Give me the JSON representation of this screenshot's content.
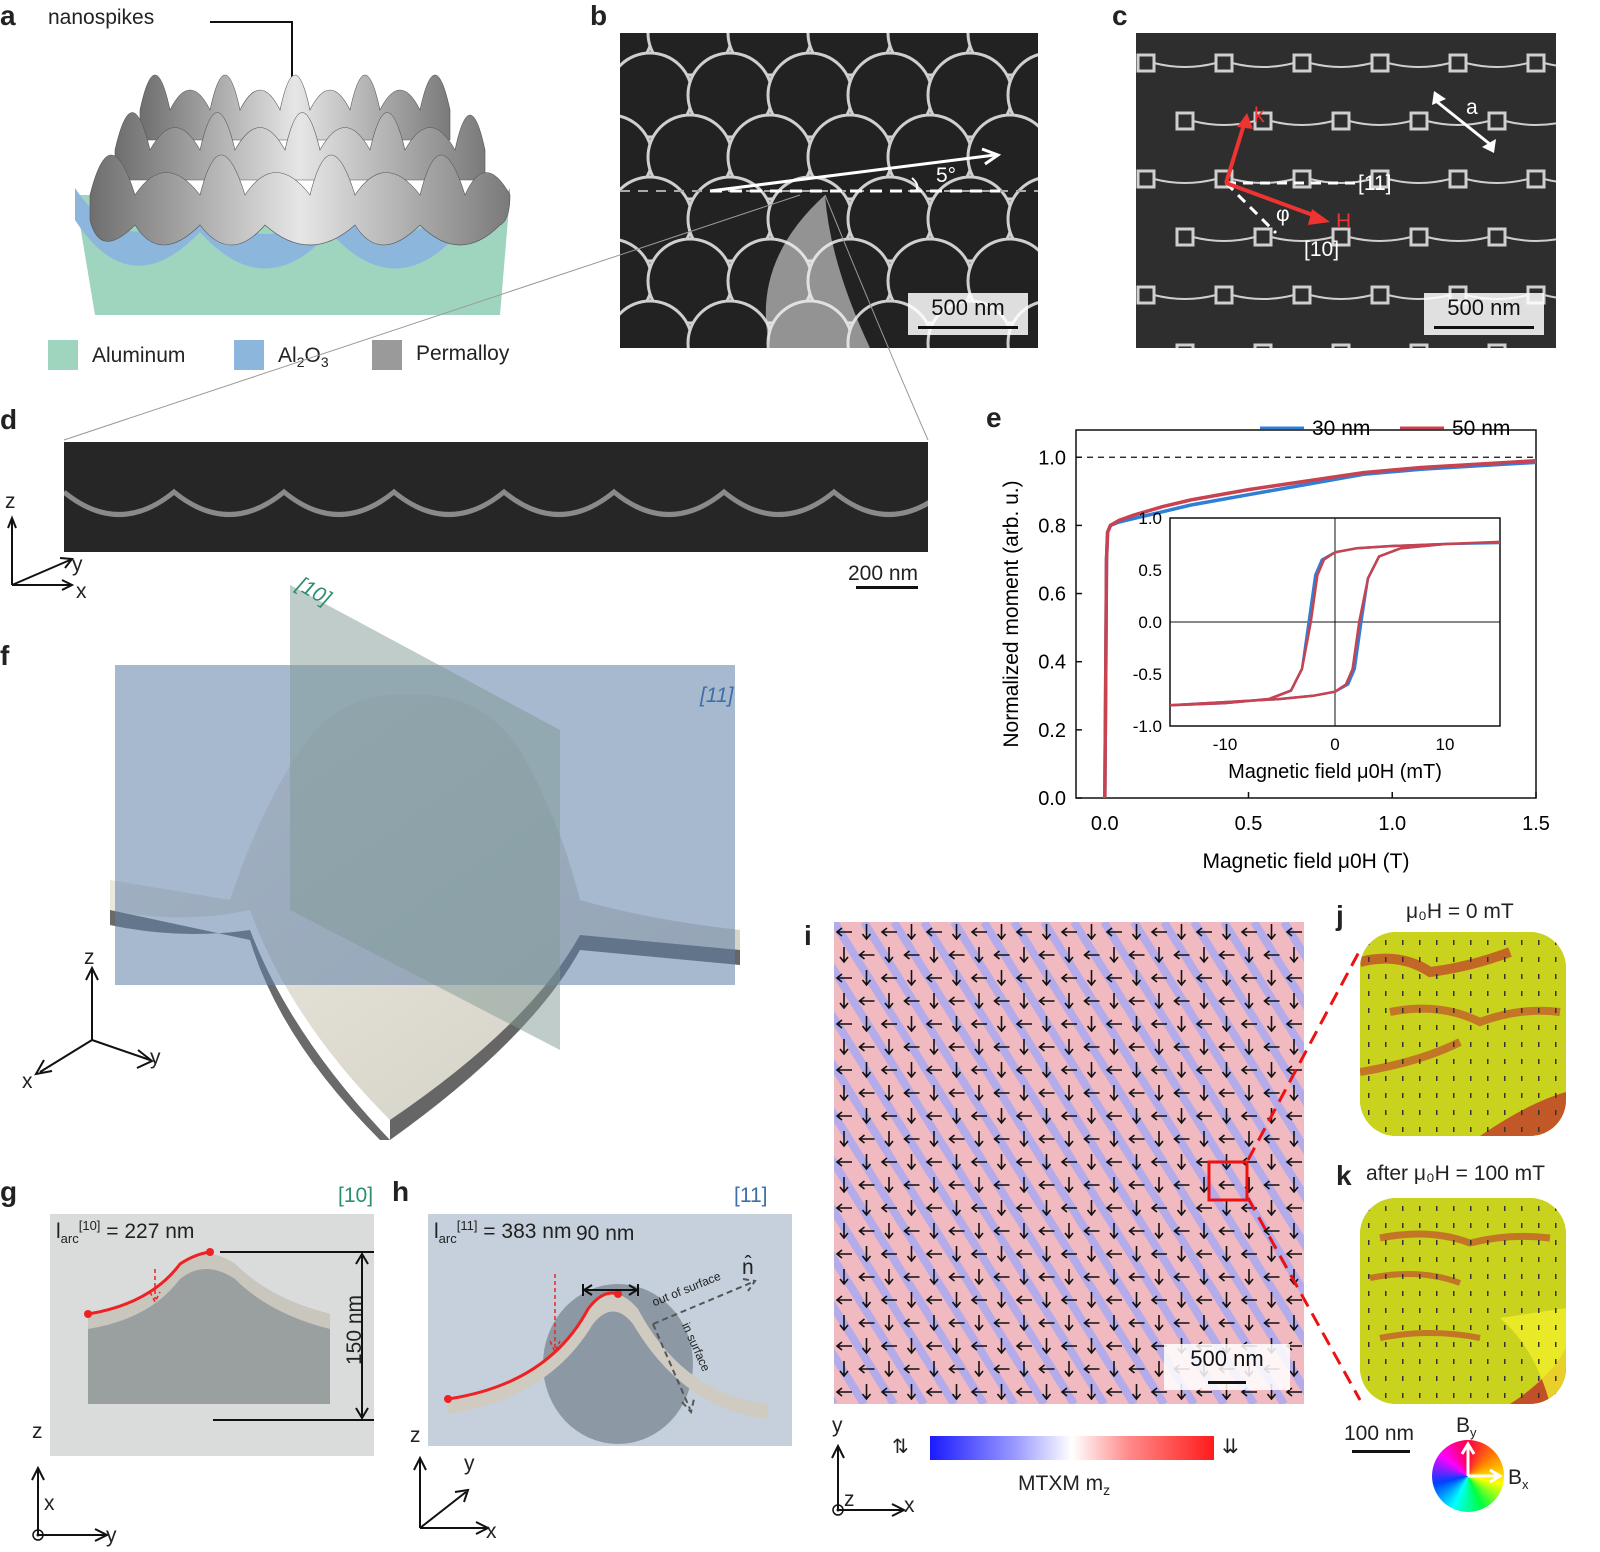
{
  "panels": {
    "a": {
      "label": "a",
      "annotation": "nanospikes",
      "legend": [
        {
          "name": "Aluminum",
          "color": "#9fd4bf"
        },
        {
          "name": "Al2O3",
          "sub_html": "Al<sub>2</sub>O<sub>3</sub>",
          "color": "#8db6dc"
        },
        {
          "name": "Permalloy",
          "color": "#9a9a9a"
        }
      ]
    },
    "b": {
      "label": "b",
      "angle": "5°",
      "scalebar": "500 nm"
    },
    "c": {
      "label": "c",
      "vec_k": "k",
      "vec_h": "H",
      "dir_11": "[11]",
      "dir_10": "[10]",
      "angle": "φ",
      "lattice": "a",
      "scalebar": "500 nm"
    },
    "d": {
      "label": "d",
      "scalebar": "200 nm",
      "axes": {
        "z": "z",
        "y": "y",
        "x": "x"
      }
    },
    "e": {
      "label": "e"
    },
    "f": {
      "label": "f",
      "plane_10": "[10]",
      "plane_11": "[11]",
      "axes": {
        "z": "z",
        "x": "x",
        "y": "y"
      }
    },
    "g": {
      "label": "g",
      "dir": "[10]",
      "arc_value": "= 227 nm",
      "height": "150 nm",
      "axes": {
        "z": "z",
        "x": "x",
        "y": "y"
      }
    },
    "h": {
      "label": "h",
      "dir": "[11]",
      "arc_value": "= 383 nm",
      "width": "90 nm",
      "out": "out of surface",
      "in": "in surface",
      "normal": "n̂",
      "axes": {
        "z": "z",
        "y": "y",
        "x": "x"
      }
    },
    "i": {
      "label": "i",
      "scalebar": "500 nm",
      "colorbar_label": "MTXM m",
      "colorbar_sub": "z",
      "axes": {
        "y": "y",
        "z": "z",
        "x": "x"
      }
    },
    "j": {
      "label": "j",
      "title": "μ₀H = 0 mT"
    },
    "k": {
      "label": "k",
      "title": "after μ₀H = 100 mT",
      "scalebar": "100 nm",
      "bx": "B",
      "by": "B"
    }
  },
  "chart_data": [
    {
      "type": "line",
      "panel": "e",
      "xlabel": "Magnetic field μ0H (T)",
      "ylabel": "Normalized moment (arb. u.)",
      "xlim": [
        -0.1,
        1.5
      ],
      "ylim": [
        0.0,
        1.08
      ],
      "xticks": [
        0.0,
        0.5,
        1.0,
        1.5
      ],
      "yticks": [
        0.0,
        0.2,
        0.4,
        0.6,
        0.8,
        1.0
      ],
      "reference_line": 1.0,
      "legend_position": "top",
      "series": [
        {
          "name": "30 nm",
          "color": "#2f7fd6",
          "x": [
            0.0,
            0.003,
            0.006,
            0.01,
            0.02,
            0.05,
            0.1,
            0.2,
            0.3,
            0.5,
            0.7,
            0.9,
            1.1,
            1.3,
            1.5
          ],
          "y": [
            0.0,
            0.3,
            0.7,
            0.78,
            0.8,
            0.81,
            0.82,
            0.84,
            0.86,
            0.89,
            0.92,
            0.95,
            0.965,
            0.975,
            0.985
          ]
        },
        {
          "name": "50 nm",
          "color": "#c8424f",
          "x": [
            0.0,
            0.003,
            0.006,
            0.01,
            0.02,
            0.05,
            0.1,
            0.2,
            0.3,
            0.5,
            0.7,
            0.9,
            1.1,
            1.3,
            1.5
          ],
          "y": [
            0.0,
            0.3,
            0.7,
            0.78,
            0.8,
            0.815,
            0.83,
            0.855,
            0.875,
            0.905,
            0.93,
            0.955,
            0.97,
            0.98,
            0.99
          ]
        }
      ]
    },
    {
      "type": "line",
      "panel": "e-inset",
      "xlabel": "Magnetic field μ0H (mT)",
      "xlim": [
        -15,
        15
      ],
      "ylim": [
        -1.0,
        1.0
      ],
      "xticks": [
        -10,
        0,
        10
      ],
      "yticks": [
        -1.0,
        -0.5,
        0.0,
        0.5,
        1.0
      ],
      "series": [
        {
          "name": "30 nm",
          "color": "#2f7fd6",
          "x": [
            -15,
            -10,
            -6,
            -4,
            -3,
            -2.4,
            -1.8,
            -1.2,
            0,
            2,
            5,
            10,
            15,
            15,
            10,
            6,
            4,
            3,
            2.4,
            1.8,
            1.2,
            0,
            -2,
            -5,
            -10,
            -15
          ],
          "y": [
            -0.8,
            -0.78,
            -0.74,
            -0.66,
            -0.45,
            0.0,
            0.45,
            0.6,
            0.67,
            0.71,
            0.73,
            0.75,
            0.76,
            0.76,
            0.75,
            0.71,
            0.63,
            0.42,
            0.0,
            -0.45,
            -0.6,
            -0.67,
            -0.71,
            -0.74,
            -0.77,
            -0.8
          ]
        },
        {
          "name": "50 nm",
          "color": "#c8424f",
          "x": [
            -15,
            -10,
            -6,
            -4,
            -3,
            -2.2,
            -1.6,
            -1.0,
            0,
            2,
            5,
            10,
            15,
            15,
            10,
            6,
            4,
            3,
            2.2,
            1.6,
            1.0,
            0,
            -2,
            -5,
            -10,
            -15
          ],
          "y": [
            -0.8,
            -0.78,
            -0.74,
            -0.66,
            -0.45,
            0.0,
            0.45,
            0.6,
            0.67,
            0.71,
            0.73,
            0.75,
            0.77,
            0.77,
            0.75,
            0.71,
            0.63,
            0.42,
            0.0,
            -0.45,
            -0.6,
            -0.67,
            -0.71,
            -0.74,
            -0.77,
            -0.8
          ]
        }
      ]
    }
  ]
}
